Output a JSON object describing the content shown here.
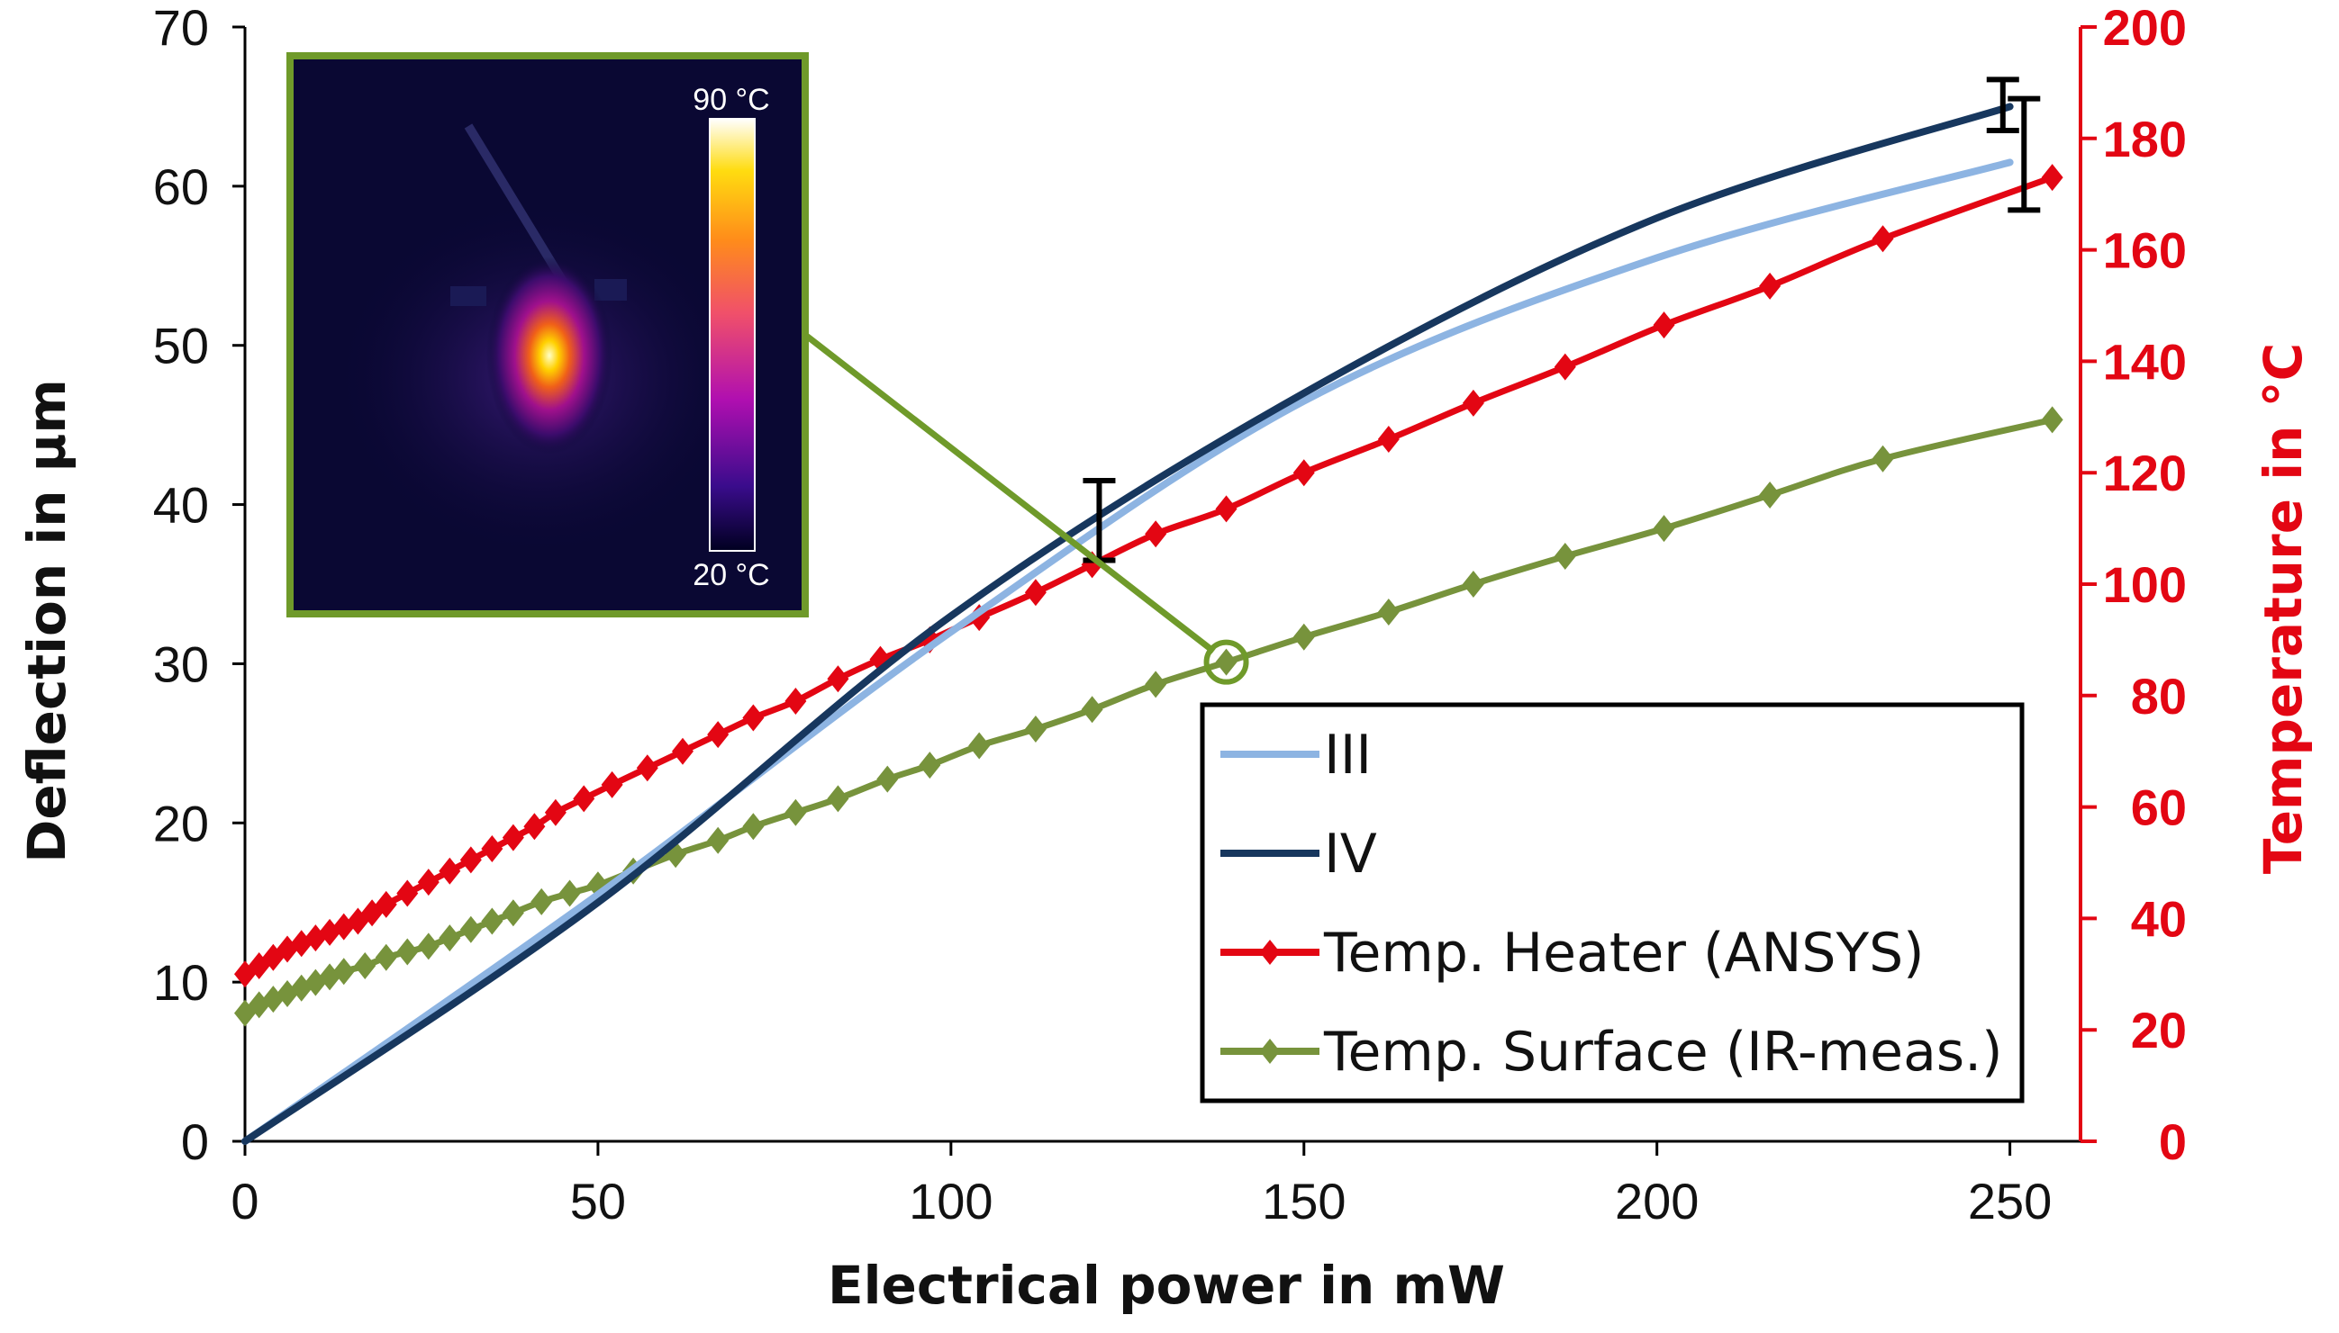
{
  "chart_data": {
    "type": "line",
    "xlabel": "Electrical power in mW",
    "ylabel": "Deflection in µm",
    "y2label": "Temperature in °C",
    "xlim": [
      0,
      260
    ],
    "ylim": [
      0,
      70
    ],
    "y2lim": [
      0,
      200
    ],
    "xticks": [
      "0",
      "50",
      "100",
      "150",
      "200",
      "250"
    ],
    "yticks": [
      "0",
      "10",
      "20",
      "30",
      "40",
      "50",
      "60",
      "70"
    ],
    "y2ticks": [
      "0",
      "20",
      "40",
      "60",
      "80",
      "100",
      "120",
      "140",
      "160",
      "180",
      "200"
    ],
    "legend_position": "bottom-right",
    "series": [
      {
        "name": "III",
        "axis": "left",
        "color": "#8db4e2",
        "marker": "none",
        "x": [
          0,
          50,
          100,
          150,
          200,
          250
        ],
        "y": [
          0,
          15.5,
          32.0,
          46.5,
          55.5,
          61.5
        ]
      },
      {
        "name": "IV",
        "axis": "left",
        "color": "#17375e",
        "marker": "none",
        "x": [
          0,
          50,
          100,
          150,
          200,
          250
        ],
        "y": [
          0,
          15.0,
          33.0,
          47.0,
          58.0,
          65.0
        ]
      },
      {
        "name": "Temp. Heater (ANSYS)",
        "axis": "right",
        "color": "#e30613",
        "marker": "diamond",
        "x": [
          0,
          2,
          4,
          6,
          8,
          10,
          12,
          14,
          16,
          18,
          20,
          23,
          26,
          29,
          32,
          35,
          38,
          41,
          44,
          48,
          52,
          57,
          62,
          67,
          72,
          78,
          84,
          90,
          97,
          104,
          112,
          120,
          129,
          139,
          150,
          162,
          174,
          187,
          201,
          216,
          232,
          256
        ],
        "y": [
          30,
          31.5,
          33,
          34.5,
          35.5,
          36.5,
          37.5,
          38.5,
          39.5,
          41,
          42.5,
          44.5,
          46.5,
          48.5,
          50.5,
          52.5,
          54.5,
          56.5,
          59,
          61.5,
          64,
          67,
          70,
          73,
          76,
          79,
          83,
          86.5,
          90,
          94,
          98.5,
          103.5,
          109,
          113.5,
          120,
          126,
          132.5,
          139,
          146.5,
          153.5,
          162,
          173
        ]
      },
      {
        "name": "Temp. Surface (IR-meas.)",
        "axis": "right",
        "color": "#77933c",
        "marker": "diamond",
        "x": [
          0,
          2,
          4,
          6,
          8,
          10,
          12,
          14,
          17,
          20,
          23,
          26,
          29,
          32,
          35,
          38,
          42,
          46,
          50,
          55,
          61,
          67,
          72,
          78,
          84,
          91,
          97,
          104,
          112,
          120,
          129,
          139,
          150,
          162,
          174,
          187,
          201,
          216,
          232,
          256
        ],
        "y": [
          23,
          24.5,
          25.5,
          26.5,
          27.5,
          28.5,
          29.5,
          30.5,
          31.5,
          33,
          34,
          35,
          36.5,
          38,
          39.5,
          41,
          43,
          44.5,
          46,
          48.5,
          51.5,
          54,
          56.5,
          59,
          61.5,
          65,
          67.5,
          71,
          74,
          77.5,
          82,
          86,
          90.5,
          95,
          100,
          105,
          110,
          116,
          122.5,
          129.5
        ]
      }
    ],
    "error_bars": [
      {
        "series": "IV",
        "x": 121,
        "y": 38.5,
        "low": 36.5,
        "high": 41.5
      },
      {
        "series": "IV",
        "x": 249,
        "y": 65.0,
        "low": 63.5,
        "high": 66.7
      },
      {
        "series": "III",
        "x": 252,
        "y": 61.5,
        "low": 58.5,
        "high": 65.5
      }
    ],
    "annotation": {
      "type": "inset-image",
      "description_link_x": 139,
      "description_link_y2": 86,
      "colorbar_max_label": "90 °C",
      "colorbar_min_label": "20 °C",
      "border_color": "#6f9a2a"
    }
  }
}
